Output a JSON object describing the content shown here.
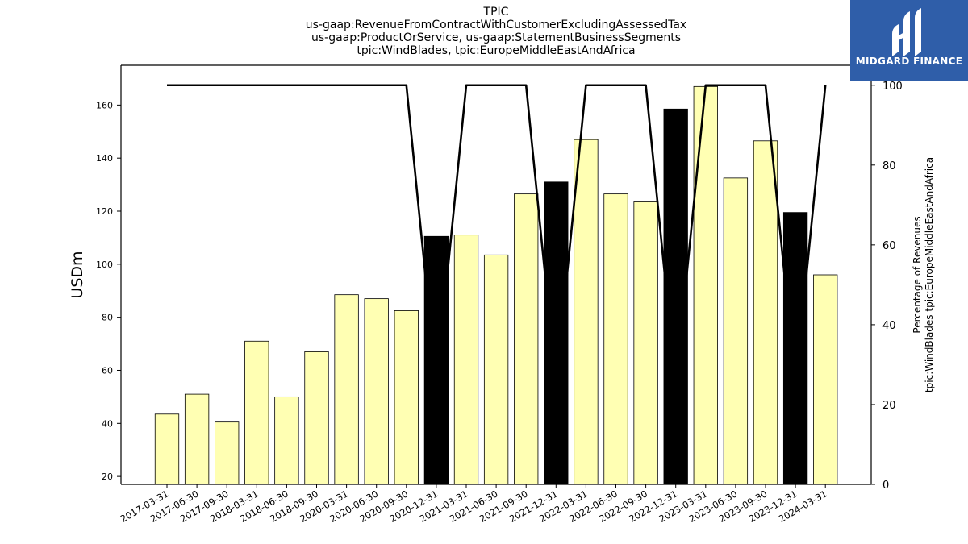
{
  "chart_data": {
    "type": "bar",
    "title_lines": [
      "TPIC",
      "us-gaap:RevenueFromContractWithCustomerExcludingAssessedTax",
      "us-gaap:ProductOrService, us-gaap:StatementBusinessSegments",
      "tpic:WindBlades, tpic:EuropeMiddleEastAndAfrica"
    ],
    "ylabel": "USDm",
    "y2label_lines": [
      "Percentage of Revenues",
      "tpic:WindBlades tpic:EuropeMiddleEastAndAfrica"
    ],
    "ylim": [
      17,
      175
    ],
    "y2lim": [
      0,
      105
    ],
    "yticks": [
      20,
      40,
      60,
      80,
      100,
      120,
      140,
      160
    ],
    "y2ticks": [
      0,
      20,
      40,
      60,
      80,
      100
    ],
    "categories": [
      "2017-03-31",
      "2017-06-30",
      "2017-09-30",
      "2018-03-31",
      "2018-06-30",
      "2018-09-30",
      "2020-03-31",
      "2020-06-30",
      "2020-09-30",
      "2020-12-31",
      "2021-03-31",
      "2021-06-30",
      "2021-09-30",
      "2021-12-31",
      "2022-03-31",
      "2022-06-30",
      "2022-09-30",
      "2022-12-31",
      "2023-03-31",
      "2023-06-30",
      "2023-09-30",
      "2023-12-31",
      "2024-03-31"
    ],
    "series": [
      {
        "type": "bar",
        "values": [
          43.5,
          51,
          40.5,
          71,
          50,
          67,
          88.5,
          87,
          82.5,
          110.5,
          111,
          103.5,
          126.5,
          131,
          147,
          126.5,
          123.5,
          158.5,
          167,
          132.5,
          146.5,
          119.5,
          96
        ],
        "highlight": [
          false,
          false,
          false,
          false,
          false,
          false,
          false,
          false,
          false,
          true,
          false,
          false,
          false,
          true,
          false,
          false,
          false,
          true,
          false,
          false,
          false,
          true,
          false
        ]
      },
      {
        "type": "line",
        "axis": "right",
        "values": [
          100,
          100,
          100,
          100,
          100,
          100,
          100,
          100,
          100,
          25,
          100,
          100,
          100,
          25,
          100,
          100,
          100,
          25,
          100,
          100,
          100,
          25,
          100
        ]
      }
    ],
    "colors": {
      "bar": "#ffffb3",
      "bar_highlight": "#000000",
      "line": "#000000"
    },
    "grid": false
  },
  "logo": {
    "text": "MIDGARD FINANCE",
    "color": "#2f5ea9"
  }
}
